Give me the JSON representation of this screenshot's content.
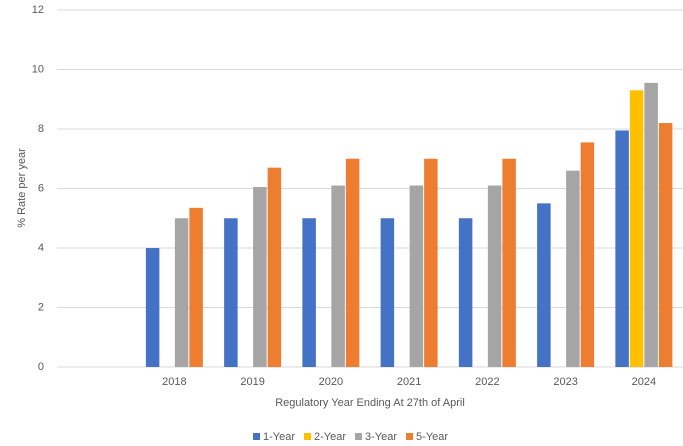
{
  "chart_data": {
    "type": "bar",
    "x_label": "Regulatory Year Ending At 27th of April",
    "y_label": "% Rate per year",
    "categories": [
      null,
      "2018",
      "2019",
      "2020",
      "2021",
      "2022",
      "2023",
      "2024"
    ],
    "series": [
      {
        "name": "1-Year",
        "color": "#4472c4",
        "values": [
          null,
          4,
          5,
          5,
          5,
          5,
          5.5,
          7.95
        ]
      },
      {
        "name": "2-Year",
        "color": "#ffc000",
        "values": [
          null,
          null,
          null,
          null,
          null,
          null,
          null,
          9.3
        ]
      },
      {
        "name": "3-Year",
        "color": "#a5a5a5",
        "values": [
          null,
          5,
          6.05,
          6.1,
          6.1,
          6.1,
          6.6,
          9.55
        ]
      },
      {
        "name": "5-Year",
        "color": "#ed7d31",
        "values": [
          null,
          5.35,
          6.7,
          7,
          7,
          7,
          7.55,
          8.2
        ]
      }
    ],
    "ylim": [
      0,
      12
    ],
    "yticks": [
      0,
      2,
      4,
      6,
      8,
      10,
      12
    ],
    "grid": true,
    "legend": "bottom"
  }
}
